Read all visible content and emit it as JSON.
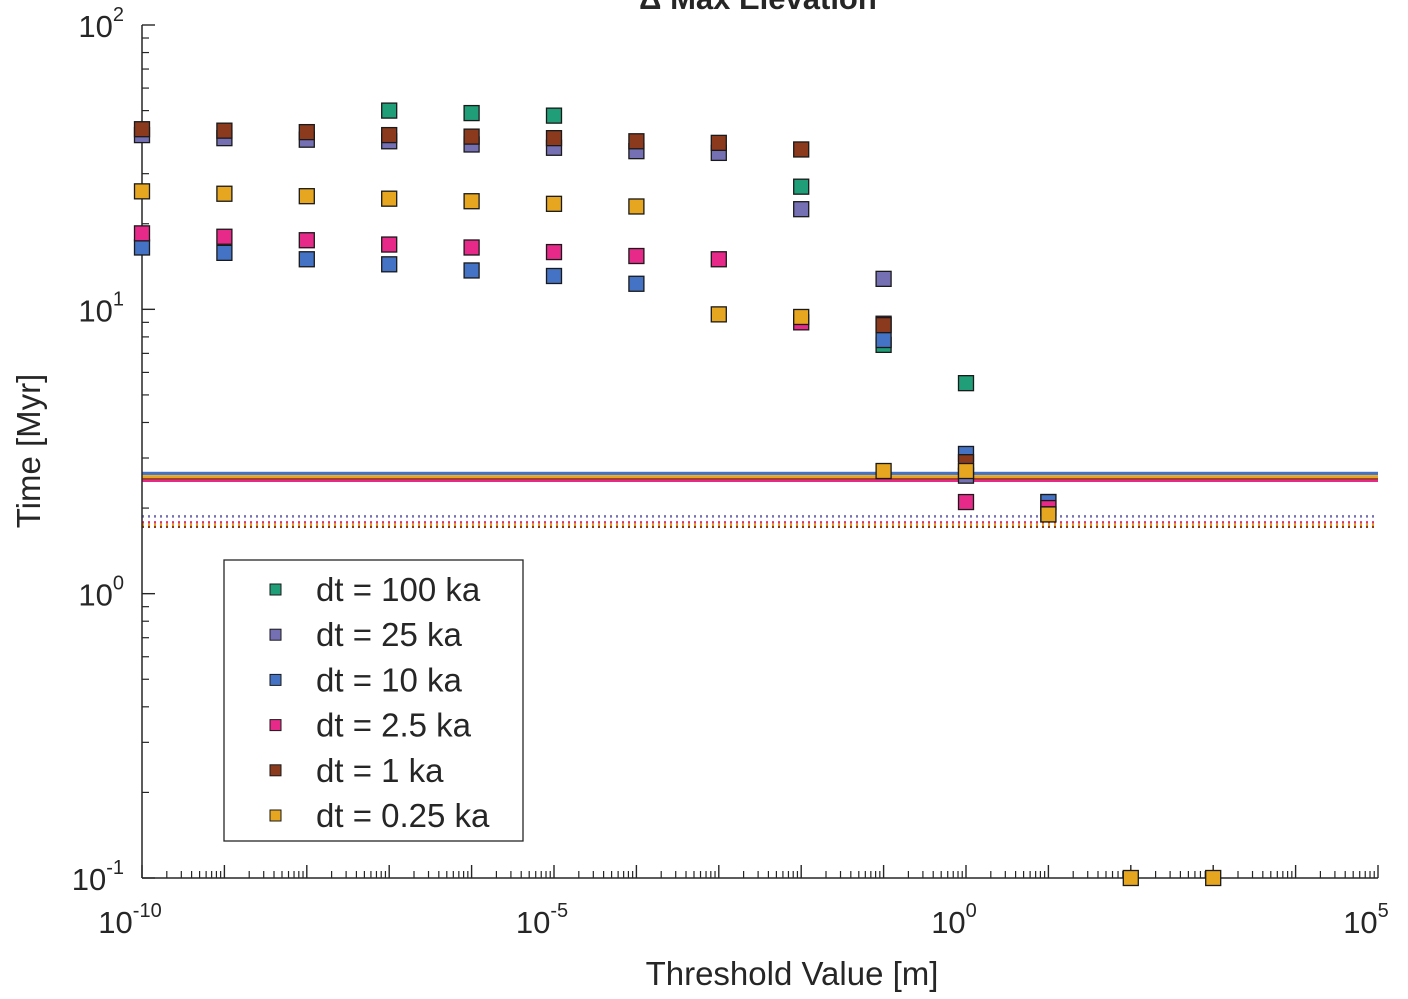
{
  "chart_data": {
    "type": "scatter",
    "title": "Δ Max Elevation",
    "xlabel": "Threshold Value [m]",
    "ylabel": "Time [Myr]",
    "xscale": "log",
    "yscale": "log",
    "xlim": [
      1e-10,
      100000.0
    ],
    "ylim": [
      0.1,
      100
    ],
    "x_ticks": [
      {
        "base": "10",
        "exp": "-10",
        "value": 1e-10
      },
      {
        "base": "10",
        "exp": "-5",
        "value": 1e-05
      },
      {
        "base": "10",
        "exp": "0",
        "value": 1
      },
      {
        "base": "10",
        "exp": "5",
        "value": 100000.0
      }
    ],
    "y_ticks": [
      {
        "base": "10",
        "exp": "-1",
        "value": 0.1
      },
      {
        "base": "10",
        "exp": "0",
        "value": 1
      },
      {
        "base": "10",
        "exp": "1",
        "value": 10
      },
      {
        "base": "10",
        "exp": "2",
        "value": 100
      }
    ],
    "grid": false,
    "legend_position": "bottom-left",
    "marker": "square",
    "series": [
      {
        "name": "dt = 100 ka",
        "color": "#1f9e77",
        "points": [
          [
            1e-07,
            50
          ],
          [
            1e-06,
            49
          ],
          [
            1e-05,
            48
          ],
          [
            0.01,
            27
          ],
          [
            0.1,
            7.5
          ],
          [
            1,
            5.5
          ]
        ],
        "reference_lines": []
      },
      {
        "name": "dt = 25 ka",
        "color": "#7570b3",
        "points": [
          [
            1e-10,
            41
          ],
          [
            1e-09,
            40
          ],
          [
            1e-08,
            39.5
          ],
          [
            1e-07,
            39
          ],
          [
            1e-06,
            38
          ],
          [
            1e-05,
            37
          ],
          [
            0.0001,
            36
          ],
          [
            0.001,
            35.5
          ],
          [
            0.01,
            22.5
          ],
          [
            0.1,
            12.8
          ],
          [
            1,
            2.6
          ],
          [
            10,
            2.1
          ]
        ],
        "reference_lines": [
          {
            "y": 2.65,
            "style": "solid"
          },
          {
            "y": 1.87,
            "style": "dotted"
          }
        ]
      },
      {
        "name": "dt = 10 ka",
        "color": "#4472c4",
        "points": [
          [
            1e-10,
            16.5
          ],
          [
            1e-09,
            15.8
          ],
          [
            1e-08,
            15
          ],
          [
            1e-07,
            14.4
          ],
          [
            1e-06,
            13.7
          ],
          [
            1e-05,
            13.1
          ],
          [
            0.0001,
            12.3
          ],
          [
            0.1,
            7.8
          ],
          [
            1,
            3.1
          ],
          [
            10,
            2.1
          ]
        ],
        "reference_lines": [
          {
            "y": 2.65,
            "style": "solid"
          }
        ]
      },
      {
        "name": "dt = 2.5 ka",
        "color": "#e7298a",
        "points": [
          [
            1e-10,
            18.5
          ],
          [
            1e-09,
            18
          ],
          [
            1e-08,
            17.5
          ],
          [
            1e-07,
            16.9
          ],
          [
            1e-06,
            16.5
          ],
          [
            1e-05,
            15.9
          ],
          [
            0.0001,
            15.4
          ],
          [
            0.001,
            15
          ],
          [
            0.01,
            9
          ],
          [
            0.1,
            8.9
          ],
          [
            1,
            2.1
          ],
          [
            10,
            2.0
          ]
        ],
        "reference_lines": [
          {
            "y": 2.5,
            "style": "solid"
          },
          {
            "y": 1.78,
            "style": "dotted"
          }
        ]
      },
      {
        "name": "dt = 1 ka",
        "color": "#8b3a1e",
        "points": [
          [
            1e-10,
            43
          ],
          [
            1e-09,
            42.5
          ],
          [
            1e-08,
            42
          ],
          [
            1e-07,
            41
          ],
          [
            1e-06,
            40.5
          ],
          [
            1e-05,
            40
          ],
          [
            0.0001,
            39
          ],
          [
            0.001,
            38.5
          ],
          [
            0.01,
            36.5
          ],
          [
            0.1,
            8.8
          ],
          [
            1,
            2.9
          ],
          [
            10,
            1.9
          ]
        ],
        "reference_lines": [
          {
            "y": 2.55,
            "style": "solid"
          },
          {
            "y": 1.72,
            "style": "dotted"
          }
        ]
      },
      {
        "name": "dt = 0.25 ka",
        "color": "#e6a620",
        "points": [
          [
            1e-10,
            26
          ],
          [
            1e-09,
            25.5
          ],
          [
            1e-08,
            25
          ],
          [
            1e-07,
            24.5
          ],
          [
            1e-06,
            24
          ],
          [
            1e-05,
            23.5
          ],
          [
            0.0001,
            23
          ],
          [
            0.001,
            9.6
          ],
          [
            0.01,
            9.4
          ],
          [
            0.1,
            2.7
          ],
          [
            1,
            2.7
          ],
          [
            10,
            1.9
          ],
          [
            100,
            0.1
          ],
          [
            1000,
            0.1
          ]
        ],
        "reference_lines": [
          {
            "y": 2.58,
            "style": "solid"
          },
          {
            "y": 1.75,
            "style": "dotted"
          }
        ]
      }
    ]
  }
}
